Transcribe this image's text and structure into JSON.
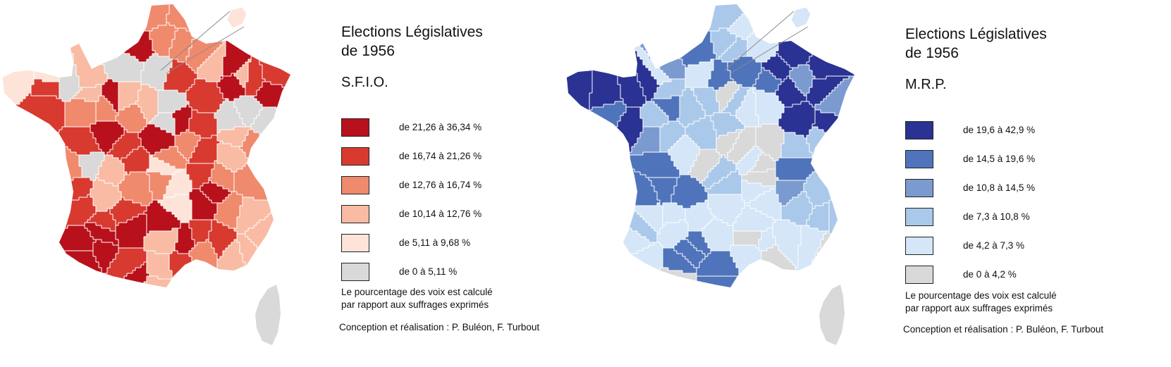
{
  "colors": {
    "sfio": [
      "#b8111c",
      "#d83a30",
      "#f08a6c",
      "#f9bba3",
      "#fde3d8",
      "#d9d9d9"
    ],
    "mrp": [
      "#2a3393",
      "#4f74bb",
      "#7b9ad0",
      "#aac8ea",
      "#d4e6f7",
      "#d9d9d9"
    ],
    "border": "#ffffff",
    "corsica": "#d9d9d9"
  },
  "maps": [
    {
      "id": "sfio",
      "title_line1": "Elections Législatives",
      "title_line2": "de 1956",
      "party": "S.F.I.O.",
      "legend": [
        {
          "label": "de 21,26 à 36,34 %"
        },
        {
          "label": "de 16,74 à 21,26 %"
        },
        {
          "label": "de 12,76 à 16,74 %"
        },
        {
          "label": "de 10,14 à 12,76 %"
        },
        {
          "label": "de 5,11 à 9,68 %"
        },
        {
          "label": "de 0 à 5,11 %"
        }
      ],
      "note_line1": "Le pourcentage des voix est calculé",
      "note_line2": "par rapport aux suffrages exprimés",
      "credit": "Conception et réalisation : P. Buléon, F. Turbout"
    },
    {
      "id": "mrp",
      "title_line1": "Elections Législatives",
      "title_line2": "de 1956",
      "party": "M.R.P.",
      "legend": [
        {
          "label": "de 19,6 à 42,9 %"
        },
        {
          "label": "de 14,5 à 19,6 %"
        },
        {
          "label": "de 10,8 à 14,5 %"
        },
        {
          "label": "de 7,3 à 10,8 %"
        },
        {
          "label": "de 4,2 à 7,3 %"
        },
        {
          "label": "de 0 à 4,2 %"
        }
      ],
      "note_line1": "Le pourcentage des voix est calculé",
      "note_line2": "par rapport aux suffrages exprimés",
      "credit": "Conception et réalisation : P. Buléon, F. Turbout"
    }
  ]
}
